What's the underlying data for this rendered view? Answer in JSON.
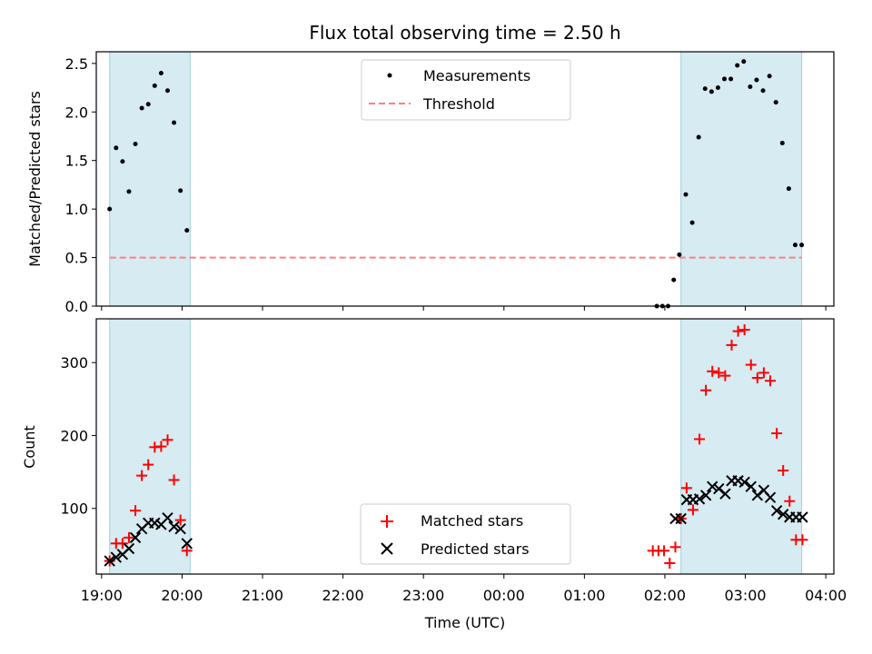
{
  "chart_data": [
    {
      "type": "scatter",
      "title": "Flux total observing time = 2.50 h",
      "xlabel": "",
      "ylabel": "Matched/Predicted stars",
      "x_ticks": [
        "19:00",
        "20:00",
        "21:00",
        "22:00",
        "23:00",
        "00:00",
        "01:00",
        "02:00",
        "03:00",
        "04:00"
      ],
      "xlim": [
        -0.066,
        9.1
      ],
      "ylim": [
        0,
        2.62
      ],
      "y_ticks": [
        {
          "value": 0.0,
          "label": "0.0"
        },
        {
          "value": 0.5,
          "label": "0.5"
        },
        {
          "value": 1.0,
          "label": "1.0"
        },
        {
          "value": 1.5,
          "label": "1.5"
        },
        {
          "value": 2.0,
          "label": "2.0"
        },
        {
          "value": 2.5,
          "label": "2.5"
        }
      ],
      "shaded_intervals": [
        [
          0.1,
          1.1
        ],
        [
          7.2,
          8.7
        ]
      ],
      "threshold": {
        "name": "Threshold",
        "value": 0.5,
        "x_range": [
          0.1,
          8.7
        ],
        "color": "#ff7f7f"
      },
      "series": [
        {
          "name": "Measurements",
          "color": "#000000",
          "x": [
            0.1,
            0.18,
            0.26,
            0.34,
            0.42,
            0.5,
            0.58,
            0.66,
            0.74,
            0.82,
            0.9,
            0.98,
            1.06,
            6.9,
            6.97,
            7.04,
            7.11,
            7.18,
            7.26,
            7.34,
            7.42,
            7.5,
            7.58,
            7.66,
            7.74,
            7.82,
            7.9,
            7.98,
            8.06,
            8.14,
            8.22,
            8.3,
            8.38,
            8.46,
            8.54,
            8.62,
            8.7
          ],
          "y": [
            1.0,
            1.63,
            1.49,
            1.18,
            1.67,
            2.04,
            2.08,
            2.27,
            2.4,
            2.22,
            1.89,
            1.19,
            0.78,
            0.0,
            0.0,
            0.0,
            0.27,
            0.53,
            1.15,
            0.86,
            1.74,
            2.24,
            2.21,
            2.25,
            2.34,
            2.34,
            2.48,
            2.52,
            2.26,
            2.33,
            2.22,
            2.37,
            2.1,
            1.68,
            1.21,
            0.63,
            0.63
          ]
        }
      ]
    },
    {
      "type": "scatter",
      "title": "",
      "xlabel": "Time (UTC)",
      "ylabel": "Count",
      "x_ticks": [
        "19:00",
        "20:00",
        "21:00",
        "22:00",
        "23:00",
        "00:00",
        "01:00",
        "02:00",
        "03:00",
        "04:00"
      ],
      "xlim": [
        -0.066,
        9.1
      ],
      "ylim": [
        10,
        360
      ],
      "y_ticks": [
        {
          "value": 100,
          "label": "100"
        },
        {
          "value": 200,
          "label": "200"
        },
        {
          "value": 300,
          "label": "300"
        }
      ],
      "shaded_intervals": [
        [
          0.1,
          1.1
        ],
        [
          7.2,
          8.7
        ]
      ],
      "series": [
        {
          "name": "Matched stars",
          "marker": "plus",
          "color": "#ff0000",
          "x": [
            0.1,
            0.18,
            0.26,
            0.34,
            0.42,
            0.5,
            0.58,
            0.66,
            0.74,
            0.82,
            0.9,
            0.98,
            1.06,
            6.85,
            6.92,
            6.99,
            7.06,
            7.13,
            7.2,
            7.27,
            7.35,
            7.43,
            7.51,
            7.59,
            7.67,
            7.75,
            7.83,
            7.91,
            7.99,
            8.07,
            8.15,
            8.23,
            8.31,
            8.39,
            8.47,
            8.55,
            8.63,
            8.71
          ],
          "y": [
            28,
            52,
            52,
            60,
            97,
            145,
            160,
            184,
            185,
            194,
            139,
            84,
            42,
            42,
            42,
            42,
            25,
            47,
            86,
            128,
            98,
            195,
            262,
            288,
            286,
            282,
            324,
            343,
            345,
            297,
            279,
            286,
            275,
            203,
            152,
            110,
            57,
            57
          ]
        },
        {
          "name": "Predicted stars",
          "marker": "x",
          "color": "#000000",
          "x": [
            0.1,
            0.18,
            0.26,
            0.34,
            0.42,
            0.5,
            0.58,
            0.66,
            0.74,
            0.82,
            0.9,
            0.98,
            1.06,
            7.13,
            7.2,
            7.27,
            7.35,
            7.43,
            7.51,
            7.59,
            7.67,
            7.75,
            7.83,
            7.91,
            7.99,
            8.07,
            8.15,
            8.23,
            8.31,
            8.39,
            8.47,
            8.55,
            8.63,
            8.71
          ],
          "y": [
            28,
            33,
            37,
            45,
            60,
            72,
            80,
            80,
            78,
            87,
            75,
            72,
            52,
            86,
            86,
            112,
            112,
            113,
            118,
            130,
            127,
            120,
            138,
            138,
            136,
            130,
            118,
            125,
            115,
            97,
            92,
            88,
            88,
            88
          ]
        }
      ]
    }
  ]
}
